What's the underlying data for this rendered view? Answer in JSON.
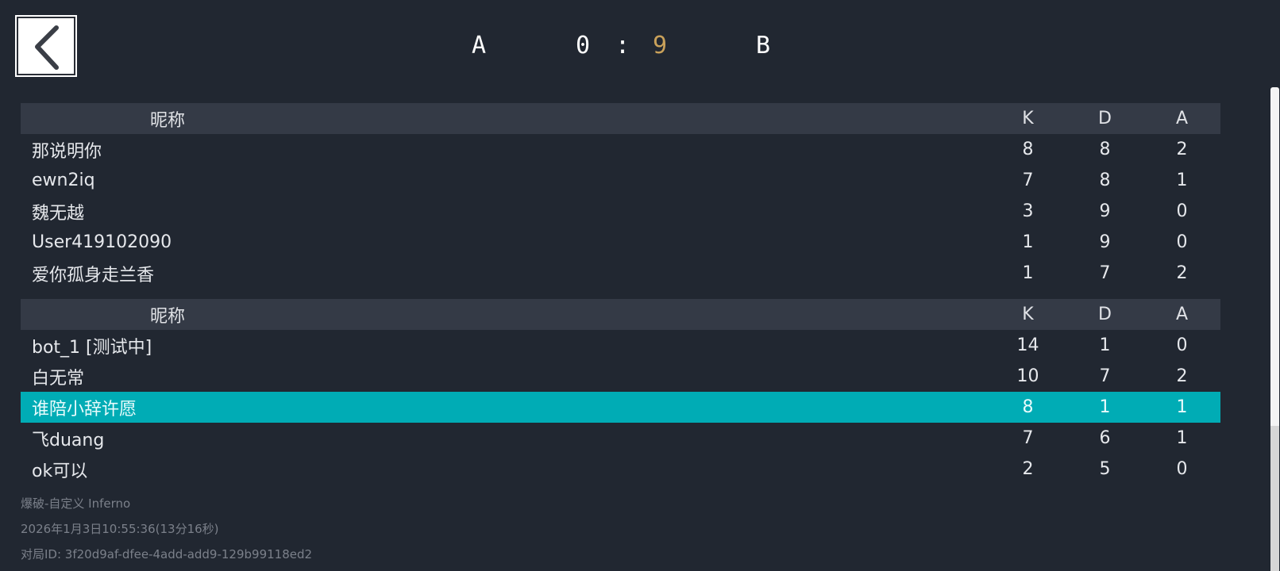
{
  "header": {
    "team_a": "A",
    "team_b": "B",
    "score_a": "0",
    "separator": ":",
    "score_b": "9",
    "score_b_color": "#c9a15a",
    "back_icon": "chevron-left-icon"
  },
  "columns": {
    "name": "昵称",
    "k": "K",
    "d": "D",
    "a": "A"
  },
  "team1": [
    {
      "name": "那说明你",
      "k": "8",
      "d": "8",
      "a": "2"
    },
    {
      "name": "ewn2iq",
      "k": "7",
      "d": "8",
      "a": "1"
    },
    {
      "name": "魏无越",
      "k": "3",
      "d": "9",
      "a": "0"
    },
    {
      "name": "User419102090",
      "k": "1",
      "d": "9",
      "a": "0"
    },
    {
      "name": "爱你孤身走兰香",
      "k": "1",
      "d": "7",
      "a": "2"
    }
  ],
  "team2": [
    {
      "name": "bot_1 [测试中]",
      "k": "14",
      "d": "1",
      "a": "0"
    },
    {
      "name": "白无常",
      "k": "10",
      "d": "7",
      "a": "2"
    },
    {
      "name": "谁陪小辞许愿",
      "k": "8",
      "d": "1",
      "a": "1"
    },
    {
      "name": "飞duang",
      "k": "7",
      "d": "6",
      "a": "1"
    },
    {
      "name": "ok可以",
      "k": "2",
      "d": "5",
      "a": "0"
    }
  ],
  "highlight_color": "#00acb5",
  "footer": {
    "mode": "爆破-自定义 Inferno",
    "time": "2026年1月3日10:55:36(13分16秒)",
    "match_id": "对局ID: 3f20d9af-dfee-4add-add9-129b99118ed2"
  }
}
